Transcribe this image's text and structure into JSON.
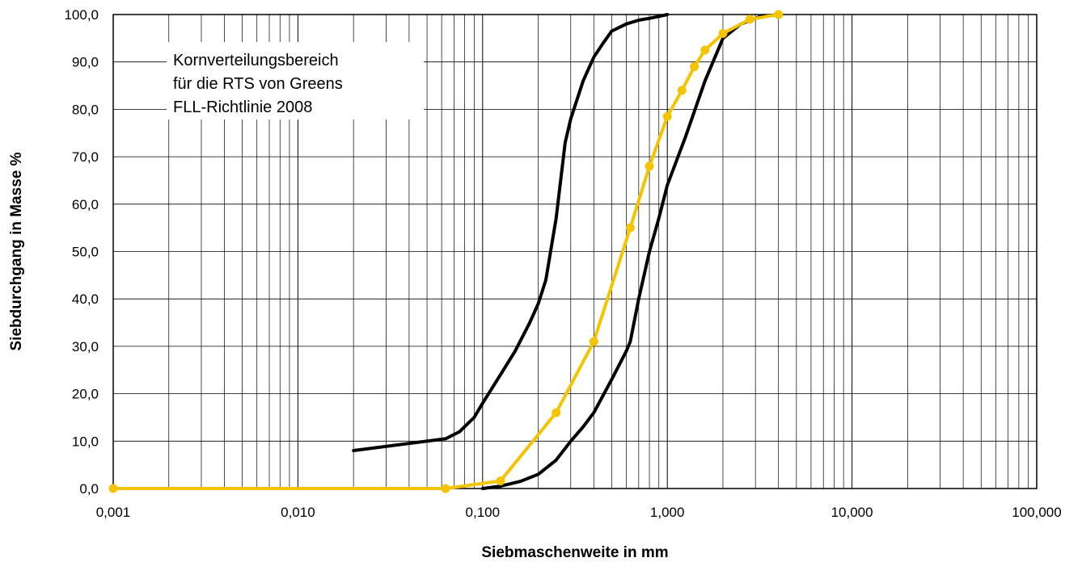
{
  "chart_data": {
    "type": "line",
    "title": "",
    "xlabel": "Siebmaschenweite in mm",
    "ylabel": "Siebdurchgang in Masse %",
    "x_scale": "log",
    "xlim": [
      0.001,
      100
    ],
    "ylim": [
      0,
      100
    ],
    "grid": true,
    "legend": "none",
    "x_tick_labels": [
      "0,001",
      "0,010",
      "0,100",
      "1,000",
      "10,000",
      "100,000"
    ],
    "y_tick_labels": [
      "0,0",
      "10,0",
      "20,0",
      "30,0",
      "40,0",
      "50,0",
      "60,0",
      "70,0",
      "80,0",
      "90,0",
      "100,0"
    ],
    "annotation": [
      "Kornverteilungsbereich",
      "für die RTS von Greens",
      "FLL-Richtlinie 2008"
    ],
    "colors": {
      "upper": "#000000",
      "lower": "#000000",
      "sample": "#F5C400"
    },
    "series": [
      {
        "key": "upper",
        "x": [
          0.02,
          0.063,
          0.075,
          0.09,
          0.1,
          0.125,
          0.15,
          0.18,
          0.2,
          0.22,
          0.25,
          0.28,
          0.3,
          0.35,
          0.4,
          0.45,
          0.5,
          0.6,
          0.7,
          0.8,
          0.9,
          1.0
        ],
        "y": [
          8,
          10.5,
          12,
          15,
          18,
          24,
          29,
          35,
          39,
          44,
          57,
          73,
          78,
          86,
          91,
          94,
          96.5,
          98,
          98.8,
          99.2,
          99.6,
          100
        ]
      },
      {
        "key": "lower",
        "x": [
          0.1,
          0.125,
          0.16,
          0.2,
          0.25,
          0.3,
          0.35,
          0.4,
          0.5,
          0.6,
          0.63,
          0.7,
          0.8,
          0.9,
          1.0,
          1.25,
          1.6,
          2.0,
          2.5,
          3.15,
          4.0
        ],
        "y": [
          0,
          0.5,
          1.5,
          3,
          6,
          10,
          13,
          16,
          23,
          29,
          31,
          40,
          50,
          57,
          64,
          74,
          86,
          95,
          98,
          99.5,
          100
        ]
      },
      {
        "key": "sample",
        "x": [
          0.001,
          0.063,
          0.125,
          0.25,
          0.4,
          0.63,
          0.8,
          1.0,
          1.2,
          1.4,
          1.6,
          2.0,
          2.8,
          4.0
        ],
        "y": [
          0,
          0,
          1.6,
          16,
          31,
          55,
          68,
          78.5,
          84,
          89,
          92.5,
          96,
          99,
          100
        ],
        "markers": true
      }
    ]
  }
}
